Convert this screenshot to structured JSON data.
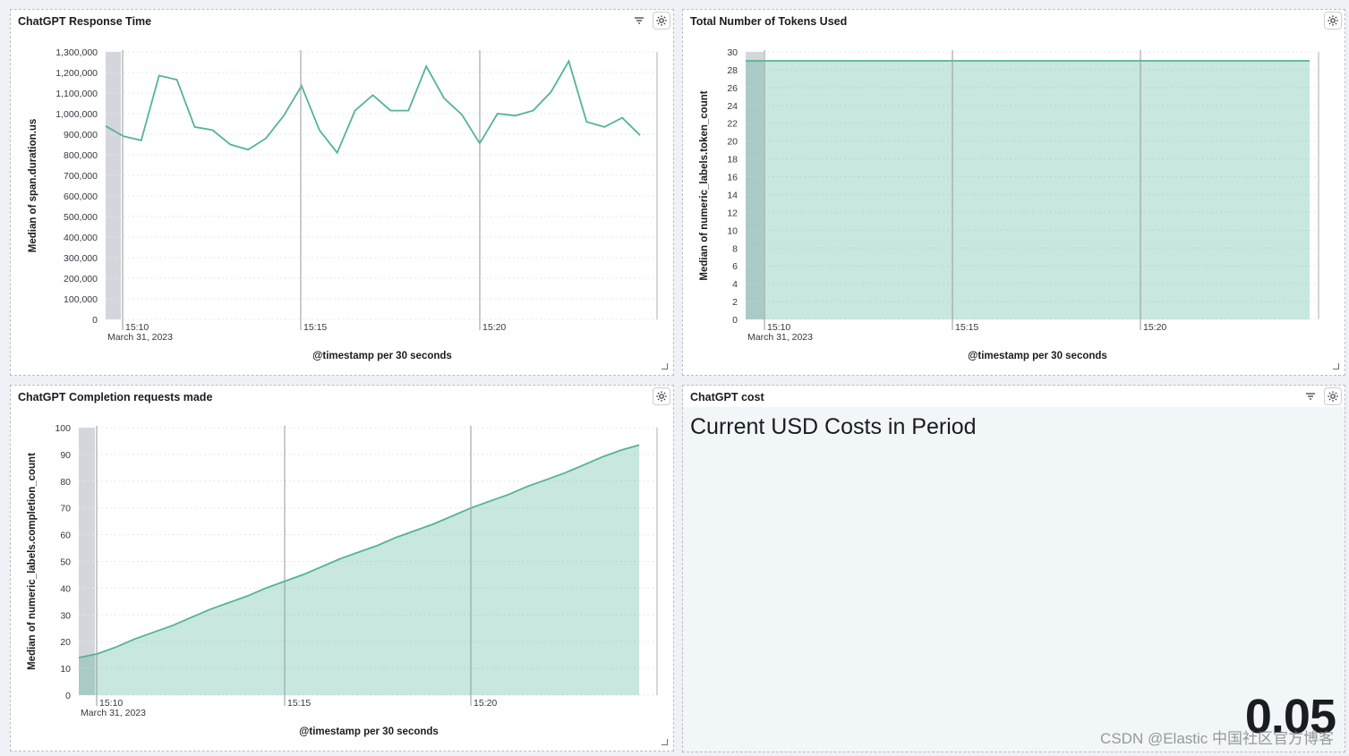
{
  "panels": {
    "response_time": {
      "title": "ChatGPT Response Time",
      "chart_data": {
        "type": "line",
        "ylabel": "Median of span.duration.us",
        "xlabel": "@timestamp per 30 seconds",
        "ylim": [
          0,
          1300000
        ],
        "yticks": [
          "1,300,000",
          "1,200,000",
          "1,100,000",
          "1,000,000",
          "900,000",
          "800,000",
          "700,000",
          "600,000",
          "500,000",
          "400,000",
          "300,000",
          "200,000",
          "100,000",
          "0"
        ],
        "xticks": [
          "15:10",
          "15:15",
          "15:20"
        ],
        "date_label": "March 31, 2023",
        "color": "#54b399",
        "series": [
          {
            "values": [
              940000,
              890000,
              870000,
              1185000,
              1165000,
              935000,
              920000,
              850000,
              825000,
              880000,
              990000,
              1135000,
              920000,
              810000,
              1015000,
              1090000,
              1015000,
              1015000,
              1230000,
              1075000,
              995000,
              855000,
              1000000,
              990000,
              1015000,
              1105000,
              1255000,
              960000,
              935000,
              980000,
              895000
            ]
          }
        ]
      }
    },
    "tokens": {
      "title": "Total Number of Tokens Used",
      "chart_data": {
        "type": "area",
        "ylabel": "Median of numeric_labels.token_count",
        "xlabel": "@timestamp per 30 seconds",
        "ylim": [
          0,
          30
        ],
        "yticks": [
          "30",
          "28",
          "26",
          "24",
          "22",
          "20",
          "18",
          "16",
          "14",
          "12",
          "10",
          "8",
          "6",
          "4",
          "2",
          "0"
        ],
        "xticks": [
          "15:10",
          "15:15",
          "15:20"
        ],
        "date_label": "March 31, 2023",
        "color": "#54b399",
        "series": [
          {
            "values": [
              29,
              29,
              29,
              29,
              29,
              29,
              29,
              29,
              29,
              29,
              29,
              29,
              29,
              29,
              29,
              29,
              29,
              29,
              29,
              29,
              29,
              29,
              29,
              29,
              29,
              29,
              29,
              29,
              29,
              29,
              29,
              29
            ]
          }
        ]
      }
    },
    "completions": {
      "title": "ChatGPT Completion requests made",
      "chart_data": {
        "type": "area",
        "ylabel": "Median of numeric_labels.completion_count",
        "xlabel": "@timestamp per 30 seconds",
        "ylim": [
          0,
          100
        ],
        "yticks": [
          "100",
          "90",
          "80",
          "70",
          "60",
          "50",
          "40",
          "30",
          "20",
          "10",
          "0"
        ],
        "xticks": [
          "15:10",
          "15:15",
          "15:20"
        ],
        "date_label": "March 31, 2023",
        "color": "#54b399",
        "series": [
          {
            "values": [
              14,
              15.5,
              18,
              21,
              23.5,
              26,
              29,
              32,
              34.5,
              37,
              40,
              42.5,
              45,
              48,
              51,
              53.5,
              56,
              59,
              61.5,
              64,
              67,
              70,
              72.5,
              75,
              78,
              80.5,
              83,
              86,
              89,
              91.5,
              93.5
            ]
          }
        ]
      }
    },
    "cost": {
      "title": "ChatGPT cost",
      "heading": "Current USD Costs in Period",
      "value": "0.05"
    }
  },
  "watermark": "CSDN @Elastic 中国社区官方博客"
}
